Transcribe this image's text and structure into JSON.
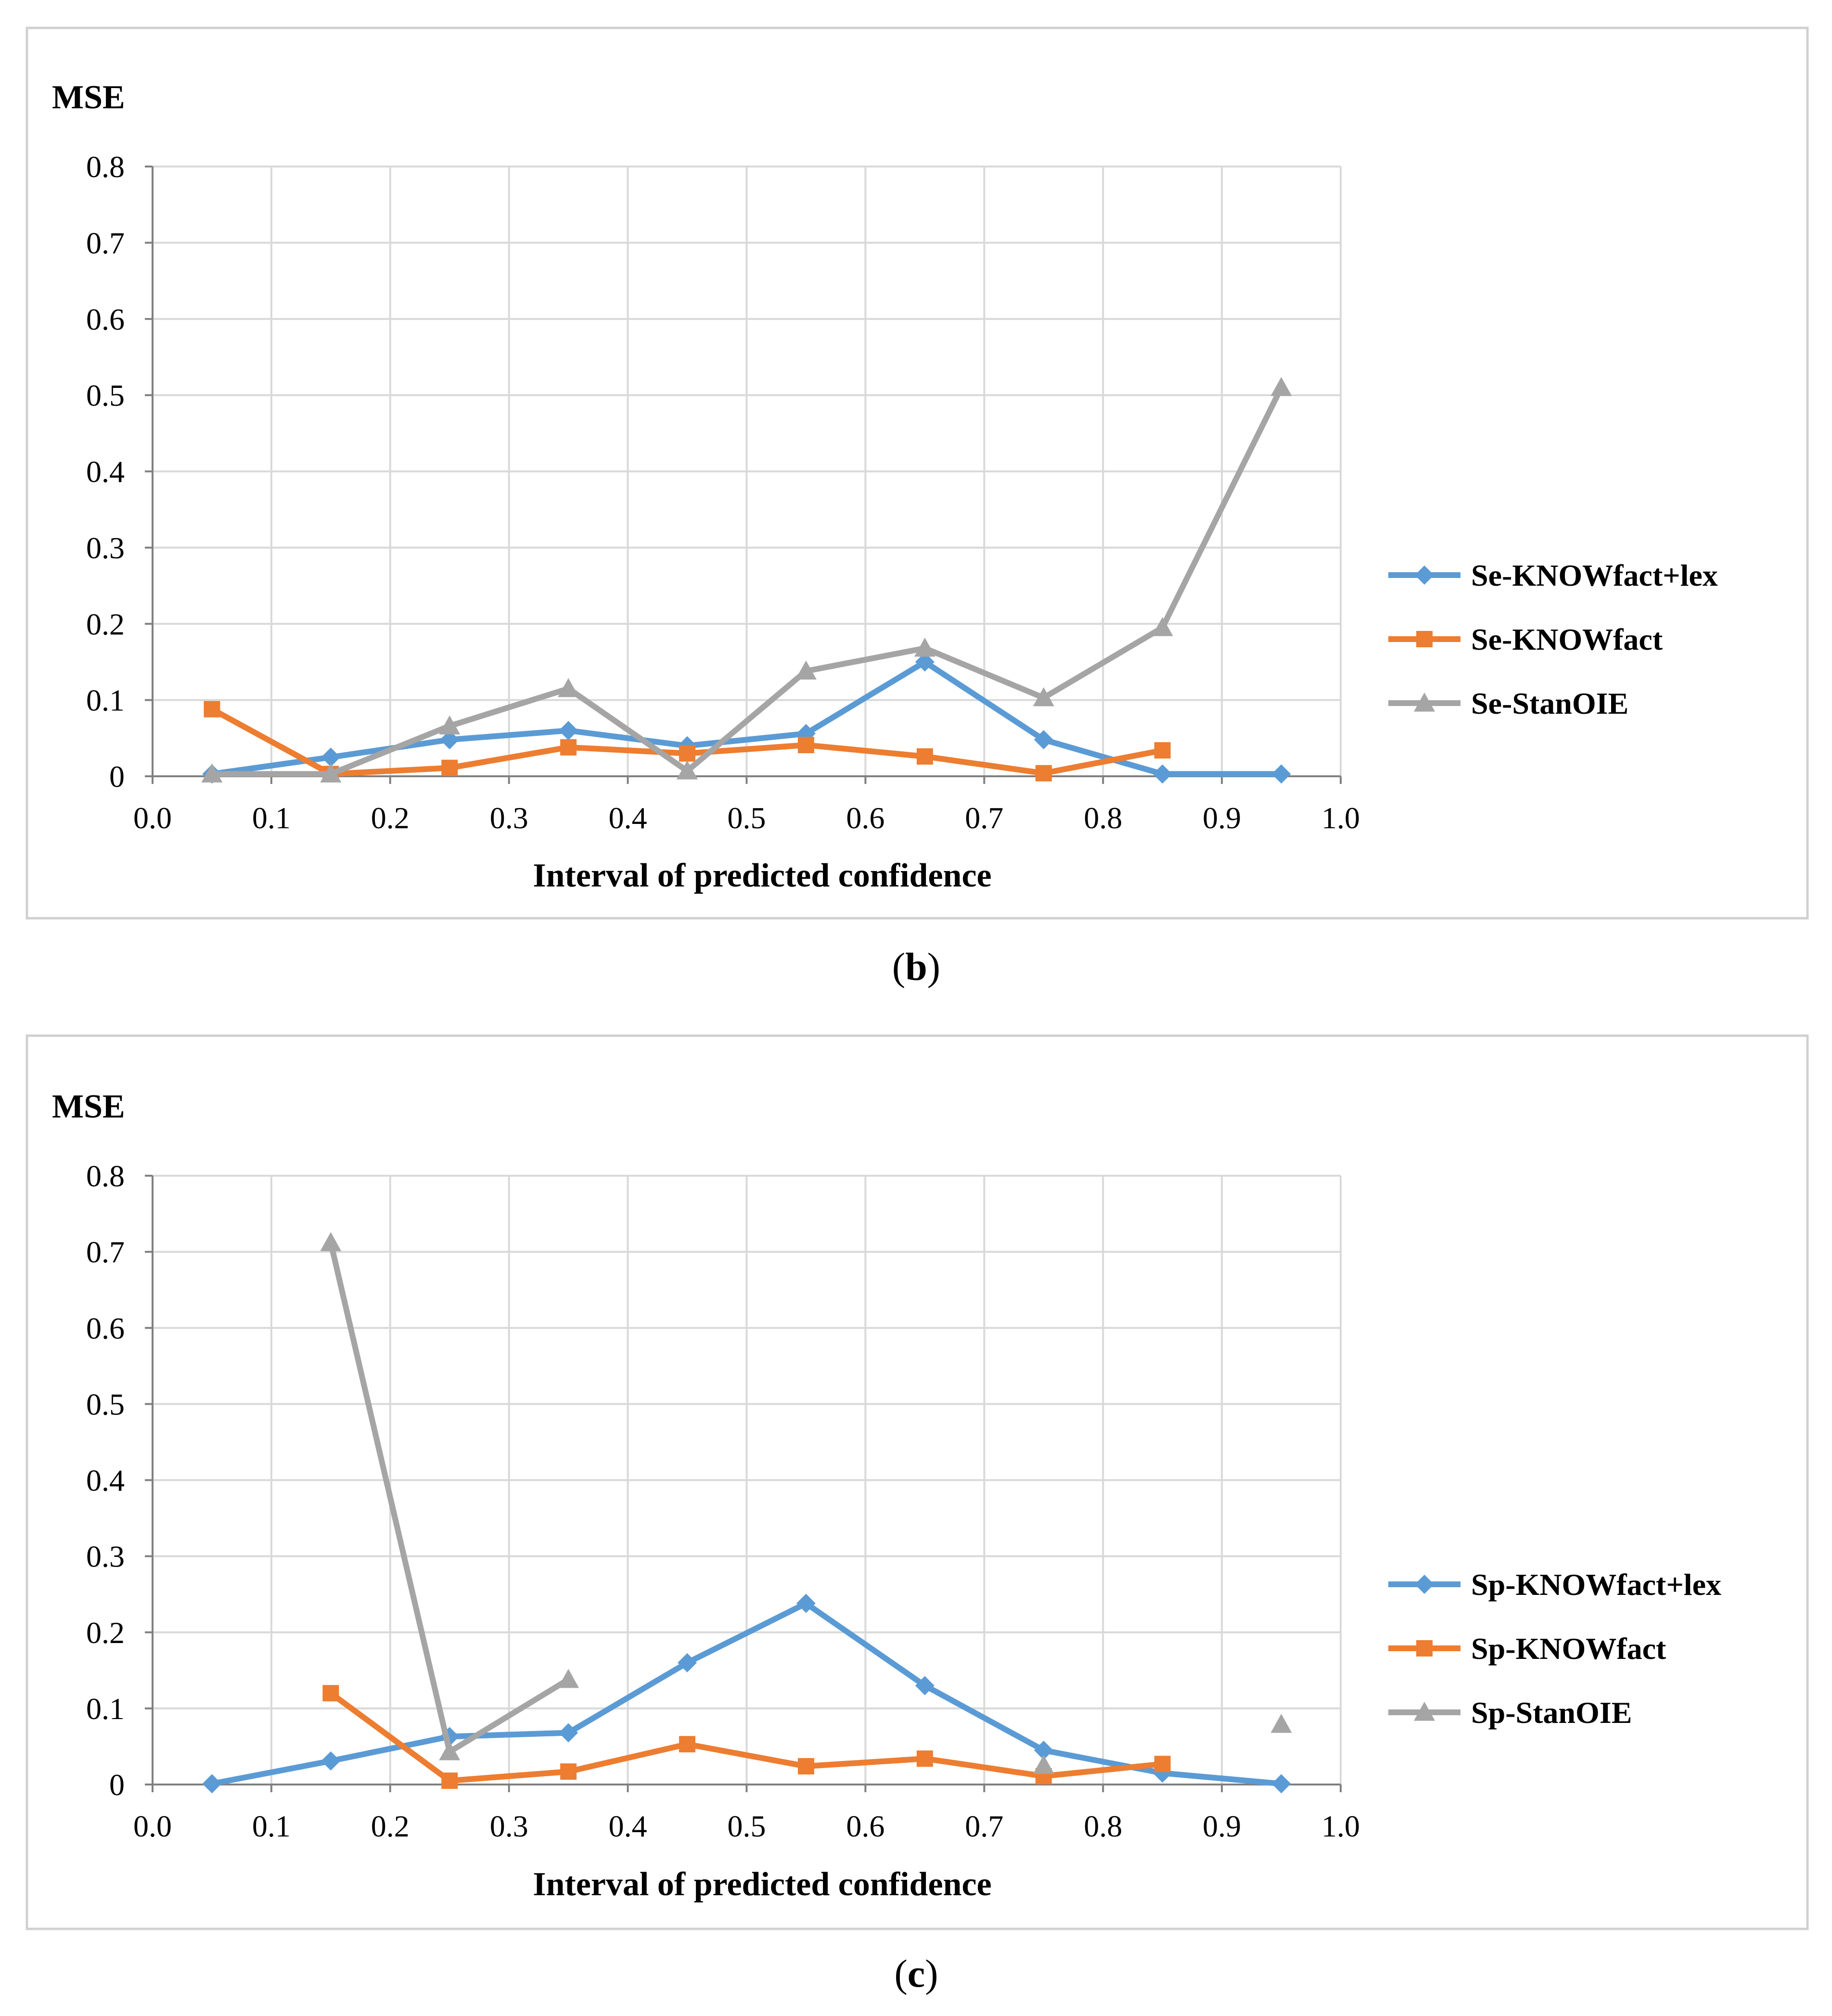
{
  "chart_data": [
    {
      "type": "line",
      "caption": {
        "open": "(",
        "letter": "b",
        "close": ")"
      },
      "ylabel": "MSE",
      "xlabel": "Interval of predicted confidence",
      "xlim": [
        0.0,
        1.0
      ],
      "ylim": [
        0,
        0.8
      ],
      "x_ticks": [
        "0.0",
        "0.1",
        "0.2",
        "0.3",
        "0.4",
        "0.5",
        "0.6",
        "0.7",
        "0.8",
        "0.9",
        "1.0"
      ],
      "y_ticks": [
        "0",
        "0.1",
        "0.2",
        "0.3",
        "0.4",
        "0.5",
        "0.6",
        "0.7",
        "0.8"
      ],
      "grid": true,
      "legend_position": "right",
      "x": [
        0.05,
        0.15,
        0.25,
        0.35,
        0.45,
        0.55,
        0.65,
        0.75,
        0.85,
        0.95
      ],
      "series": [
        {
          "name": "Se-KNOWfact+lex",
          "color": "#5b9bd5",
          "marker": "diamond",
          "values": [
            0.003,
            0.025,
            0.048,
            0.06,
            0.04,
            0.056,
            0.15,
            0.048,
            0.003,
            0.003
          ]
        },
        {
          "name": "Se-KNOWfact",
          "color": "#ed7d31",
          "marker": "square",
          "values": [
            0.088,
            0.003,
            0.011,
            0.038,
            0.03,
            0.041,
            0.026,
            0.004,
            0.034,
            null
          ]
        },
        {
          "name": "Se-StanOIE",
          "color": "#a5a5a5",
          "marker": "triangle",
          "values": [
            0.003,
            0.003,
            0.066,
            0.115,
            0.007,
            0.138,
            0.168,
            0.103,
            0.195,
            0.51
          ]
        }
      ]
    },
    {
      "type": "line",
      "caption": {
        "open": "(",
        "letter": "c",
        "close": ")"
      },
      "ylabel": "MSE",
      "xlabel": "Interval of predicted confidence",
      "xlim": [
        0.0,
        1.0
      ],
      "ylim": [
        0,
        0.8
      ],
      "x_ticks": [
        "0.0",
        "0.1",
        "0.2",
        "0.3",
        "0.4",
        "0.5",
        "0.6",
        "0.7",
        "0.8",
        "0.9",
        "1.0"
      ],
      "y_ticks": [
        "0",
        "0.1",
        "0.2",
        "0.3",
        "0.4",
        "0.5",
        "0.6",
        "0.7",
        "0.8"
      ],
      "grid": true,
      "legend_position": "right",
      "x": [
        0.05,
        0.15,
        0.25,
        0.35,
        0.45,
        0.55,
        0.65,
        0.75,
        0.85,
        0.95
      ],
      "series": [
        {
          "name": "Sp-KNOWfact+lex",
          "color": "#5b9bd5",
          "marker": "diamond",
          "values": [
            0.001,
            0.031,
            0.063,
            0.068,
            0.16,
            0.238,
            0.13,
            0.045,
            0.015,
            0.001
          ]
        },
        {
          "name": "Sp-KNOWfact",
          "color": "#ed7d31",
          "marker": "square",
          "values": [
            null,
            0.12,
            0.005,
            0.017,
            0.053,
            0.024,
            0.034,
            0.011,
            0.027,
            null
          ]
        },
        {
          "name": "Sp-StanOIE",
          "color": "#a5a5a5",
          "marker": "triangle",
          "values": [
            null,
            0.712,
            0.043,
            0.138,
            null,
            null,
            null,
            0.025,
            null,
            0.079
          ]
        }
      ]
    }
  ]
}
